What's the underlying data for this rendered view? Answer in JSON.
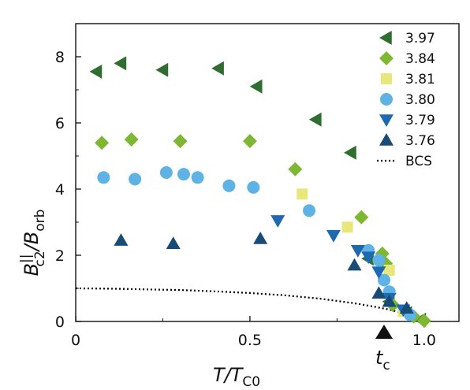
{
  "chart_data": {
    "type": "scatter",
    "title": "",
    "xlabel": {
      "main": "T/T",
      "sub": "C0"
    },
    "ylabel": {
      "base": "B",
      "sup": "||",
      "sub": "c2",
      "slash": "/B",
      "sub2": "orb"
    },
    "xlim": [
      0,
      1.1
    ],
    "ylim": [
      0,
      9
    ],
    "xticks": [
      0,
      0.5,
      1.0
    ],
    "xtick_labels": [
      "0",
      "0.5",
      "1.0"
    ],
    "yticks": [
      0,
      2,
      4,
      6,
      8
    ],
    "ytick_labels": [
      "0",
      "2",
      "4",
      "6",
      "8"
    ],
    "grid": false,
    "legend_position": "top-right",
    "annotation": {
      "label": "t",
      "sub": "c",
      "x": 0.885,
      "marker": "upward-triangle"
    },
    "series": [
      {
        "name": "3.97",
        "marker": "left-triangle",
        "color": "#2f6e30",
        "points": [
          [
            0.06,
            7.55
          ],
          [
            0.13,
            7.8
          ],
          [
            0.25,
            7.6
          ],
          [
            0.41,
            7.65
          ],
          [
            0.52,
            7.1
          ],
          [
            0.69,
            6.1
          ],
          [
            0.79,
            5.1
          ],
          [
            0.84,
            1.9
          ],
          [
            0.9,
            0.6
          ],
          [
            0.95,
            0.25
          ],
          [
            0.99,
            0.05
          ]
        ]
      },
      {
        "name": "3.84",
        "marker": "diamond",
        "color": "#7eb731",
        "points": [
          [
            0.075,
            5.4
          ],
          [
            0.16,
            5.5
          ],
          [
            0.3,
            5.45
          ],
          [
            0.5,
            5.45
          ],
          [
            0.63,
            4.6
          ],
          [
            0.82,
            3.15
          ],
          [
            0.88,
            2.05
          ],
          [
            0.89,
            1.75
          ],
          [
            0.91,
            0.5
          ],
          [
            0.97,
            0.15
          ],
          [
            1.0,
            0.02
          ]
        ]
      },
      {
        "name": "3.81",
        "marker": "square",
        "color": "#e7e77a",
        "points": [
          [
            0.65,
            3.85
          ],
          [
            0.78,
            2.85
          ],
          [
            0.9,
            1.55
          ],
          [
            0.94,
            0.3
          ]
        ]
      },
      {
        "name": "3.80",
        "marker": "circle",
        "color": "#5eb3e4",
        "points": [
          [
            0.08,
            4.35
          ],
          [
            0.17,
            4.3
          ],
          [
            0.26,
            4.5
          ],
          [
            0.31,
            4.45
          ],
          [
            0.35,
            4.35
          ],
          [
            0.44,
            4.1
          ],
          [
            0.51,
            4.05
          ],
          [
            0.67,
            3.35
          ],
          [
            0.84,
            2.15
          ],
          [
            0.87,
            1.85
          ],
          [
            0.885,
            1.25
          ],
          [
            0.9,
            0.9
          ],
          [
            0.96,
            0.2
          ]
        ]
      },
      {
        "name": "3.79",
        "marker": "down-triangle",
        "color": "#1d6ab2",
        "points": [
          [
            0.58,
            3.05
          ],
          [
            0.74,
            2.6
          ],
          [
            0.81,
            2.15
          ],
          [
            0.84,
            1.95
          ],
          [
            0.87,
            1.5
          ],
          [
            0.9,
            0.7
          ],
          [
            0.94,
            0.35
          ]
        ]
      },
      {
        "name": "3.76",
        "marker": "up-triangle",
        "color": "#1a4b74",
        "points": [
          [
            0.13,
            2.45
          ],
          [
            0.28,
            2.35
          ],
          [
            0.53,
            2.5
          ],
          [
            0.8,
            1.7
          ],
          [
            0.87,
            0.85
          ],
          [
            0.9,
            0.6
          ],
          [
            0.95,
            0.4
          ]
        ]
      },
      {
        "name": "BCS",
        "marker": "dotted-line",
        "color": "#000000",
        "points": [
          [
            0.0,
            1.0
          ],
          [
            0.1,
            0.99
          ],
          [
            0.2,
            0.97
          ],
          [
            0.3,
            0.95
          ],
          [
            0.4,
            0.91
          ],
          [
            0.5,
            0.86
          ],
          [
            0.6,
            0.79
          ],
          [
            0.7,
            0.69
          ],
          [
            0.8,
            0.55
          ],
          [
            0.85,
            0.46
          ],
          [
            0.9,
            0.36
          ],
          [
            0.95,
            0.22
          ],
          [
            0.98,
            0.1
          ],
          [
            1.0,
            0.0
          ]
        ]
      }
    ]
  }
}
